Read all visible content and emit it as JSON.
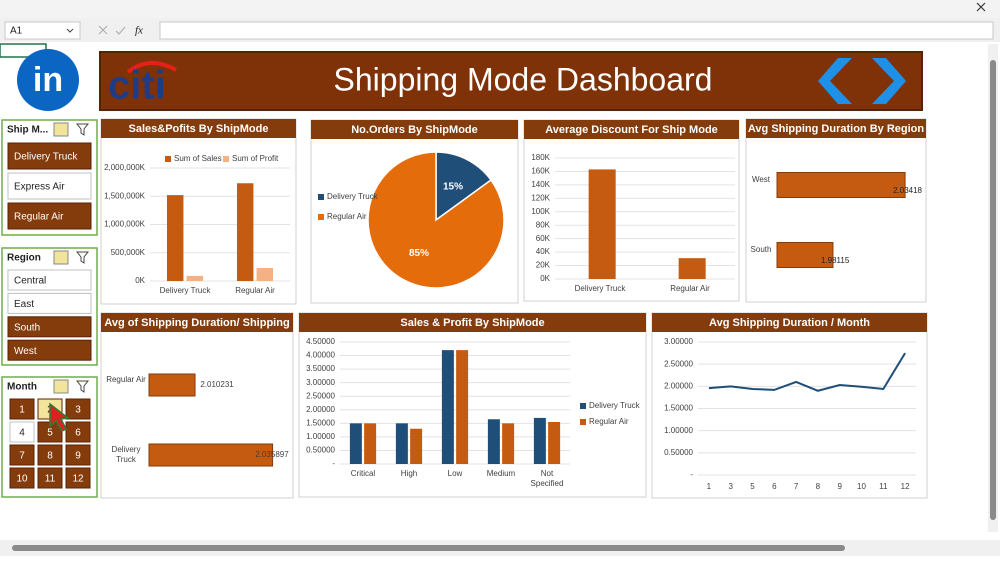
{
  "toolbar": {
    "name_box": "A1",
    "function_label": "fx"
  },
  "header": {
    "logo_text": "in",
    "brand": "citi",
    "title": "Shipping Mode Dashboard"
  },
  "slicers": [
    {
      "title": "Ship M...",
      "items": [
        {
          "label": "Delivery Truck",
          "selected": true
        },
        {
          "label": "Express Air",
          "selected": false
        },
        {
          "label": "Regular Air",
          "selected": true
        }
      ]
    },
    {
      "title": "Region",
      "items": [
        {
          "label": "Central",
          "selected": false
        },
        {
          "label": "East",
          "selected": false
        },
        {
          "label": "South",
          "selected": true
        },
        {
          "label": "West",
          "selected": true
        }
      ]
    },
    {
      "title": "Month",
      "items": [
        {
          "label": "1",
          "selected": true
        },
        {
          "label": "2",
          "selected": true,
          "hovered": true
        },
        {
          "label": "3",
          "selected": true
        },
        {
          "label": "4",
          "selected": false
        },
        {
          "label": "5",
          "selected": true
        },
        {
          "label": "6",
          "selected": true
        },
        {
          "label": "7",
          "selected": true
        },
        {
          "label": "8",
          "selected": true
        },
        {
          "label": "9",
          "selected": true
        },
        {
          "label": "10",
          "selected": true
        },
        {
          "label": "11",
          "selected": true
        },
        {
          "label": "12",
          "selected": true
        }
      ]
    }
  ],
  "chart_data": [
    {
      "type": "bar",
      "title": "Sales&Pofits By ShipMode",
      "categories": [
        "Delivery Truck",
        "Regular Air"
      ],
      "series": [
        {
          "name": "Sum of Sales",
          "color": "#c55a11",
          "values": [
            1520000,
            1730000
          ]
        },
        {
          "name": "Sum of Profit",
          "color": "#f4b183",
          "values": [
            90000,
            230000
          ]
        }
      ],
      "ylim": [
        0,
        2000000
      ],
      "yticks": [
        {
          "value": 0,
          "label": "0K"
        },
        {
          "value": 500000,
          "label": "500,000K"
        },
        {
          "value": 1000000,
          "label": "1,000,000K"
        },
        {
          "value": 1500000,
          "label": "1,500,000K"
        },
        {
          "value": 2000000,
          "label": "2,000,000K"
        }
      ],
      "grid": true,
      "legend": "top"
    },
    {
      "type": "pie",
      "title": "No.Orders By ShipMode",
      "categories": [
        "Delivery Truck",
        "Regular Air"
      ],
      "values": [
        15,
        85
      ],
      "value_labels": [
        "15%",
        "85%"
      ],
      "colors": [
        "#1f4e79",
        "#e46c0a"
      ],
      "legend": "left"
    },
    {
      "type": "bar",
      "title": "Average Discount For Ship Mode",
      "categories": [
        "Delivery Truck",
        "Regular Air"
      ],
      "values": [
        163,
        31
      ],
      "color": "#c55a11",
      "ylim": [
        0,
        180
      ],
      "yticks": [
        {
          "value": 0,
          "label": "0K"
        },
        {
          "value": 20,
          "label": "20K"
        },
        {
          "value": 40,
          "label": "40K"
        },
        {
          "value": 60,
          "label": "60K"
        },
        {
          "value": 80,
          "label": "80K"
        },
        {
          "value": 100,
          "label": "100K"
        },
        {
          "value": 120,
          "label": "120K"
        },
        {
          "value": 140,
          "label": "140K"
        },
        {
          "value": 160,
          "label": "160K"
        },
        {
          "value": 180,
          "label": "180K"
        }
      ],
      "grid": true
    },
    {
      "type": "barh",
      "title": "Avg Shipping Duration By Region",
      "categories": [
        "West",
        "South"
      ],
      "values": [
        2.03418,
        1.98115
      ],
      "color": "#c55a11",
      "xlim": [
        1.94,
        2.04
      ]
    },
    {
      "type": "barh",
      "title": "Avg of Shipping Duration/ Shipping",
      "categories": [
        "Regular Air",
        "Delivery Truck"
      ],
      "values": [
        2.010231,
        2.035897
      ],
      "color": "#c55a11",
      "xlim": [
        1.995,
        2.04
      ]
    },
    {
      "type": "bar",
      "title": "Sales & Profit By ShipMode",
      "categories": [
        "Critical",
        "High",
        "Low",
        "Medium",
        "Not Specified"
      ],
      "series": [
        {
          "name": "Delivery Truck",
          "color": "#1f4e79",
          "values": [
            1.5,
            1.5,
            4.2,
            1.65,
            1.7
          ]
        },
        {
          "name": "Regular Air",
          "color": "#c55a11",
          "values": [
            1.5,
            1.3,
            4.2,
            1.5,
            1.55
          ]
        }
      ],
      "ylim": [
        0,
        4.5
      ],
      "yticks": [
        {
          "value": 0,
          "label": "-"
        },
        {
          "value": 0.5,
          "label": "0.50000"
        },
        {
          "value": 1,
          "label": "1.00000"
        },
        {
          "value": 1.5,
          "label": "1.50000"
        },
        {
          "value": 2,
          "label": "2.00000"
        },
        {
          "value": 2.5,
          "label": "2.50000"
        },
        {
          "value": 3,
          "label": "3.00000"
        },
        {
          "value": 3.5,
          "label": "3.50000"
        },
        {
          "value": 4,
          "label": "4.00000"
        },
        {
          "value": 4.5,
          "label": "4.50000"
        }
      ],
      "grid": true,
      "legend": "right"
    },
    {
      "type": "line",
      "title": "Avg Shipping Duration / Month",
      "categories": [
        1,
        3,
        5,
        6,
        7,
        8,
        9,
        10,
        11,
        12
      ],
      "values": [
        1.96,
        2.0,
        1.94,
        1.92,
        2.1,
        1.9,
        2.03,
        1.99,
        1.94,
        2.75
      ],
      "color": "#1f4e79",
      "ylim": [
        0,
        3
      ],
      "yticks": [
        {
          "value": 0,
          "label": "-"
        },
        {
          "value": 0.5,
          "label": "0.50000"
        },
        {
          "value": 1,
          "label": "1.00000"
        },
        {
          "value": 1.5,
          "label": "1.50000"
        },
        {
          "value": 2,
          "label": "2.00000"
        },
        {
          "value": 2.5,
          "label": "2.50000"
        },
        {
          "value": 3,
          "label": "3.00000"
        }
      ],
      "grid": true
    }
  ]
}
